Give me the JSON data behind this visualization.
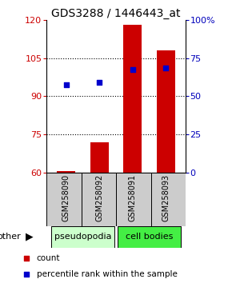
{
  "title": "GDS3288 / 1446443_at",
  "samples": [
    "GSM258090",
    "GSM258092",
    "GSM258091",
    "GSM258093"
  ],
  "bar_values": [
    60.5,
    72.0,
    118.0,
    108.0
  ],
  "bar_base": 60,
  "dot_values": [
    94.5,
    95.5,
    100.5,
    101.0
  ],
  "left_ylim": [
    60,
    120
  ],
  "left_yticks": [
    60,
    75,
    90,
    105,
    120
  ],
  "right_ylim": [
    0,
    100
  ],
  "right_yticks": [
    0,
    25,
    50,
    75,
    100
  ],
  "right_yticklabels": [
    "0",
    "25",
    "50",
    "75",
    "100%"
  ],
  "bar_color": "#cc0000",
  "dot_color": "#0000cc",
  "pseudopodia_color": "#ccffcc",
  "cell_bodies_color": "#44ee44",
  "left_tick_color": "#cc0000",
  "right_tick_color": "#0000bb",
  "title_fontsize": 10,
  "sample_label_fontsize": 7,
  "other_label": "other",
  "legend_count_label": "count",
  "legend_pct_label": "percentile rank within the sample",
  "bar_width": 0.55
}
